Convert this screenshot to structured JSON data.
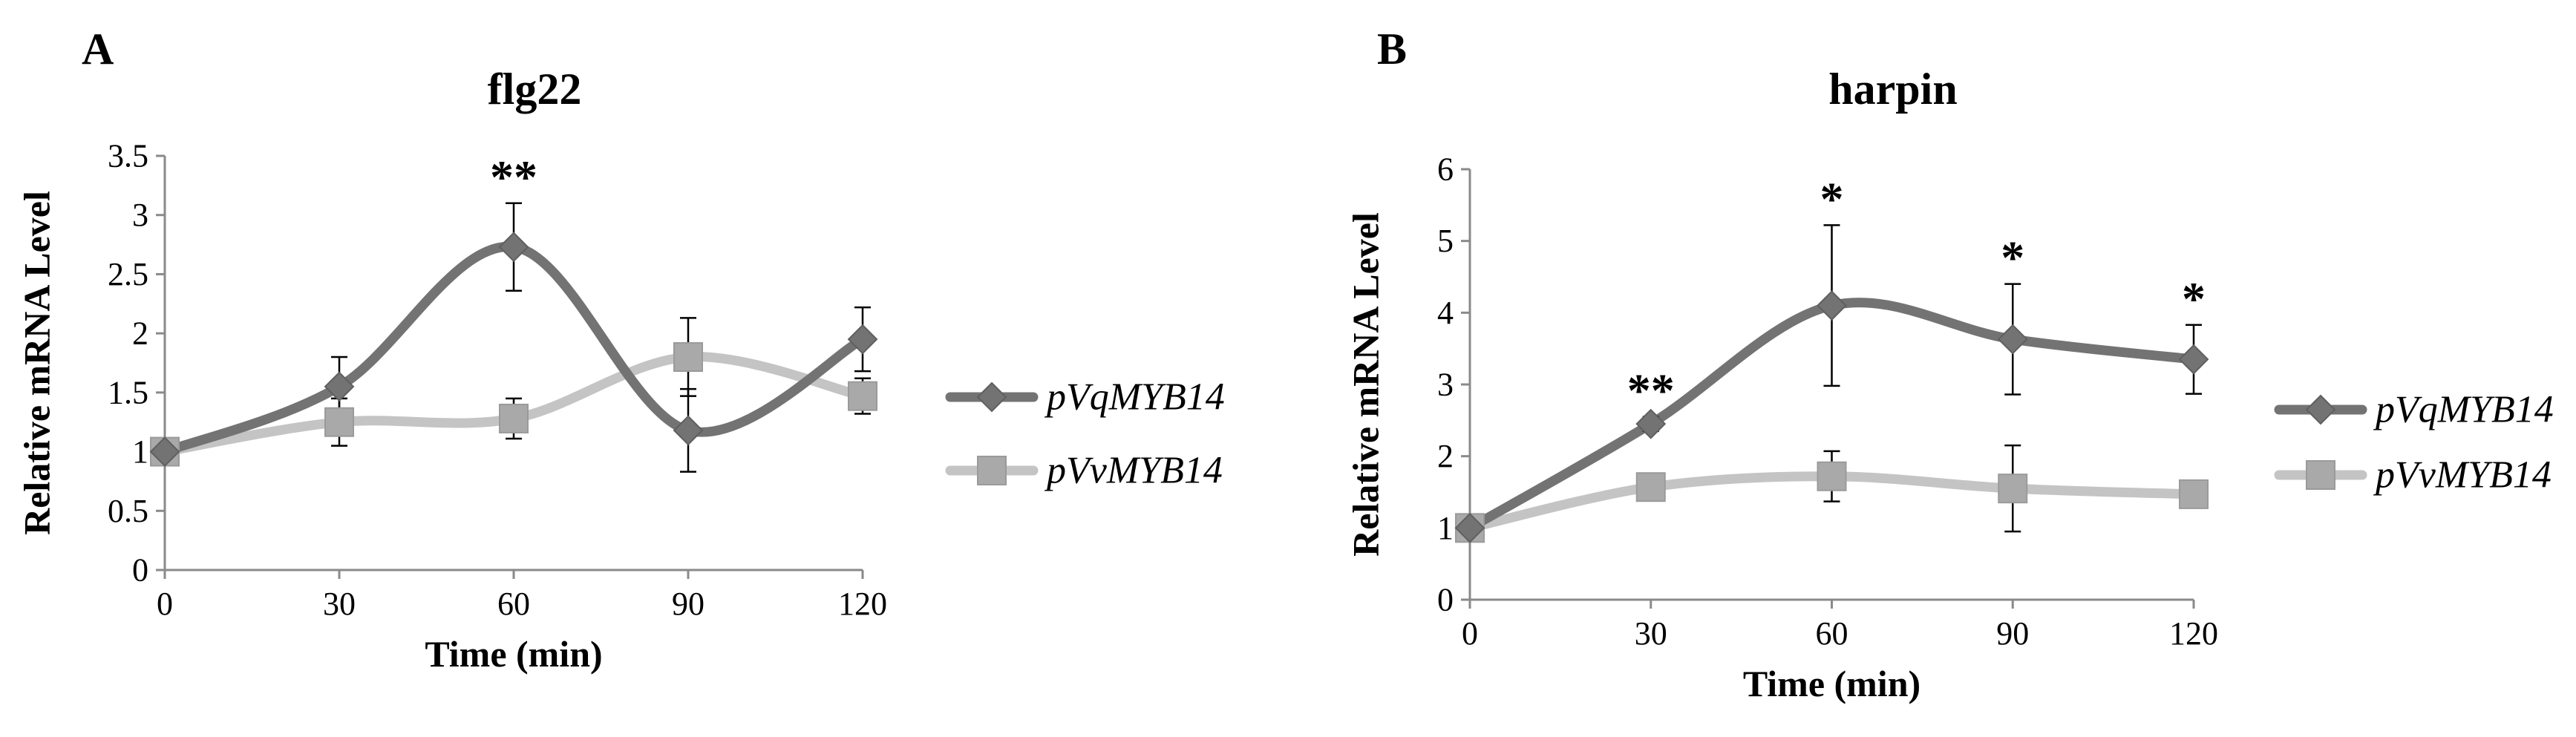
{
  "chart_data": [
    {
      "panel": "A",
      "type": "line",
      "title": "flg22",
      "xlabel": "Time (min)",
      "ylabel": "Relative mRNA Level",
      "x": [
        0,
        30,
        60,
        90,
        120
      ],
      "xticks": [
        "0",
        "30",
        "60",
        "90",
        "120"
      ],
      "ylim": [
        0,
        3.5
      ],
      "yticks": [
        "0",
        "0.5",
        "1",
        "1.5",
        "2",
        "2.5",
        "3",
        "3.5"
      ],
      "grid": false,
      "legend_position": "right",
      "series": [
        {
          "name": "pVqMYB14",
          "marker": "diamond",
          "color": "#737373",
          "values": [
            1.0,
            1.55,
            2.73,
            1.18,
            1.95
          ],
          "errors": [
            0.0,
            0.25,
            0.37,
            0.35,
            0.27
          ]
        },
        {
          "name": "pVvMYB14",
          "marker": "square",
          "color": "#c4c4c4",
          "values": [
            1.0,
            1.25,
            1.28,
            1.8,
            1.47
          ],
          "errors": [
            0.0,
            0.2,
            0.17,
            0.33,
            0.15
          ]
        }
      ],
      "annotations": [
        {
          "x": 60,
          "text": "**"
        }
      ]
    },
    {
      "panel": "B",
      "type": "line",
      "title": "harpin",
      "xlabel": "Time (min)",
      "ylabel": "Relative mRNA Level",
      "x": [
        0,
        30,
        60,
        90,
        120
      ],
      "xticks": [
        "0",
        "30",
        "60",
        "90",
        "120"
      ],
      "ylim": [
        0,
        6
      ],
      "yticks": [
        "0",
        "1",
        "2",
        "3",
        "4",
        "5",
        "6"
      ],
      "grid": false,
      "legend_position": "right",
      "series": [
        {
          "name": "pVqMYB14",
          "marker": "diamond",
          "color": "#737373",
          "values": [
            1.0,
            2.45,
            4.1,
            3.63,
            3.35
          ],
          "errors": [
            0.0,
            0.1,
            1.12,
            0.77,
            0.48
          ]
        },
        {
          "name": "pVvMYB14",
          "marker": "square",
          "color": "#c4c4c4",
          "values": [
            1.0,
            1.57,
            1.72,
            1.55,
            1.47
          ],
          "errors": [
            0.0,
            0.1,
            0.35,
            0.6,
            0.07
          ]
        }
      ],
      "annotations": [
        {
          "x": 30,
          "text": "**"
        },
        {
          "x": 60,
          "text": "*"
        },
        {
          "x": 90,
          "text": "*"
        },
        {
          "x": 120,
          "text": "*"
        }
      ]
    }
  ]
}
